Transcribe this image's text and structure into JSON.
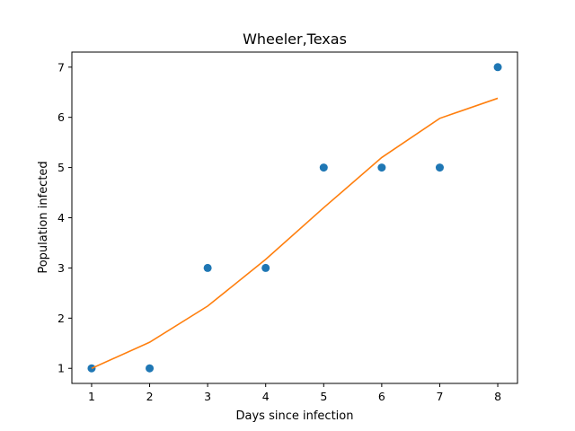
{
  "chart_data": {
    "type": "scatter",
    "title": "Wheeler,Texas",
    "xlabel": "Days since infection",
    "ylabel": "Population infected",
    "xlim": [
      0.66,
      8.34
    ],
    "ylim": [
      0.7,
      7.3
    ],
    "xticks": [
      1,
      2,
      3,
      4,
      5,
      6,
      7,
      8
    ],
    "yticks": [
      1,
      2,
      3,
      4,
      5,
      6,
      7
    ],
    "grid": false,
    "series": [
      {
        "kind": "scatter",
        "color": "#1f77b4",
        "x": [
          1,
          2,
          3,
          4,
          5,
          6,
          7,
          8
        ],
        "y": [
          1,
          1,
          3,
          3,
          5,
          5,
          5,
          7
        ]
      },
      {
        "kind": "line",
        "color": "#ff7f0e",
        "x": [
          1,
          2,
          3,
          4,
          5,
          6,
          7,
          8
        ],
        "y": [
          1.0,
          1.52,
          2.24,
          3.17,
          4.2,
          5.2,
          5.98,
          6.38
        ]
      }
    ]
  }
}
